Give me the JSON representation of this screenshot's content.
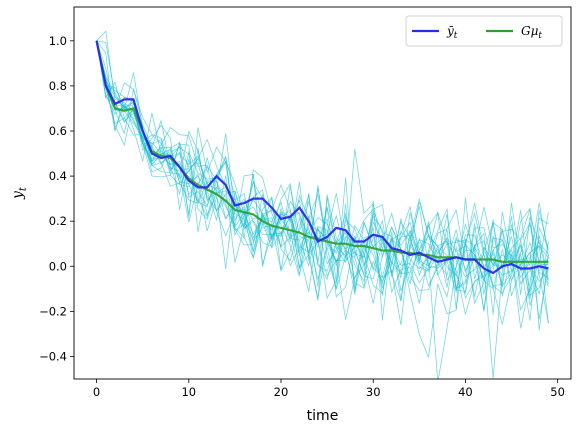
{
  "chart_data": {
    "type": "line",
    "xlabel": "time",
    "ylabel_main": "y",
    "ylabel_sub": "t",
    "xlim": [
      -2.45,
      51.45
    ],
    "ylim": [
      -0.5,
      1.15
    ],
    "xticks": [
      0,
      10,
      20,
      30,
      40,
      50
    ],
    "yticks": [
      -0.4,
      -0.2,
      0.0,
      0.2,
      0.4,
      0.6,
      0.8,
      1.0
    ],
    "ytick_labels": [
      "−0.4",
      "−0.2",
      "0.0",
      "0.2",
      "0.4",
      "0.6",
      "0.8",
      "1.0"
    ],
    "legend_placement": "upper-right",
    "legend_columns": 2,
    "colors": {
      "paths": "#17becf",
      "mean_path": "#2a2ae8",
      "expectation": "#2ca02c"
    },
    "series": [
      {
        "name": "ȳ_t",
        "legend_main": "ȳ",
        "legend_sub": "t",
        "values": [
          1.0,
          0.8,
          0.72,
          0.74,
          0.74,
          0.6,
          0.5,
          0.48,
          0.49,
          0.44,
          0.38,
          0.35,
          0.35,
          0.4,
          0.36,
          0.27,
          0.28,
          0.3,
          0.3,
          0.26,
          0.21,
          0.22,
          0.26,
          0.2,
          0.11,
          0.13,
          0.17,
          0.16,
          0.11,
          0.11,
          0.14,
          0.13,
          0.08,
          0.07,
          0.05,
          0.06,
          0.04,
          0.02,
          0.03,
          0.04,
          0.03,
          0.03,
          -0.01,
          -0.03,
          0.0,
          0.01,
          -0.01,
          -0.01,
          0.0,
          -0.01
        ]
      },
      {
        "name": "Gμ_t",
        "legend_main": "Gμ",
        "legend_sub": "t",
        "values": [
          1.0,
          0.8,
          0.7,
          0.69,
          0.7,
          0.6,
          0.51,
          0.49,
          0.48,
          0.44,
          0.39,
          0.36,
          0.34,
          0.32,
          0.29,
          0.25,
          0.24,
          0.23,
          0.2,
          0.18,
          0.17,
          0.16,
          0.15,
          0.13,
          0.12,
          0.11,
          0.1,
          0.1,
          0.09,
          0.09,
          0.08,
          0.07,
          0.07,
          0.06,
          0.06,
          0.05,
          0.05,
          0.04,
          0.04,
          0.04,
          0.03,
          0.03,
          0.03,
          0.03,
          0.02,
          0.02,
          0.02,
          0.02,
          0.02,
          0.02
        ]
      }
    ],
    "sample_paths_count": 20,
    "sample_paths_seed": 7
  }
}
